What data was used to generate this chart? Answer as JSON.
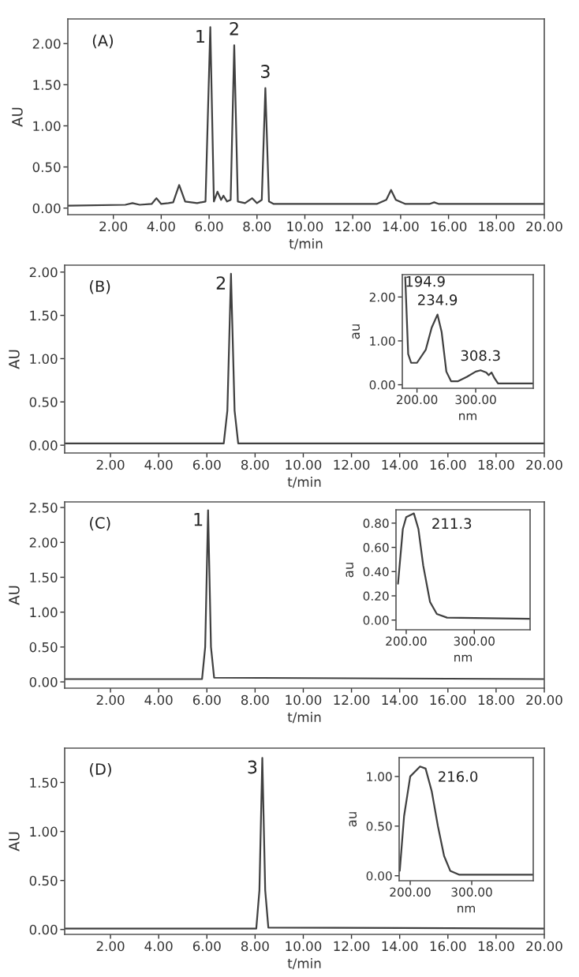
{
  "chart_data": [
    {
      "type": "line",
      "xlabel": "t/min",
      "ylabel": "AU",
      "annotations": [
        "(A)",
        {
          "text": "1",
          "x": 6.05,
          "y": 2.2
        },
        {
          "text": "2",
          "x": 7.05,
          "y": 1.98
        },
        {
          "text": "3",
          "x": 8.35,
          "y": 1.46
        }
      ],
      "x": [
        0.1,
        2.5,
        2.8,
        3.1,
        3.6,
        3.8,
        4.0,
        4.3,
        4.5,
        4.75,
        5.0,
        5.5,
        5.85,
        6.05,
        6.2,
        6.35,
        6.5,
        6.6,
        6.75,
        6.9,
        7.05,
        7.2,
        7.5,
        7.8,
        8.0,
        8.2,
        8.35,
        8.5,
        8.7,
        10.0,
        13.0,
        13.4,
        13.6,
        13.8,
        14.2,
        15.2,
        15.4,
        15.6,
        20.0
      ],
      "series": [
        {
          "color": "#404040",
          "values": [
            0.03,
            0.04,
            0.06,
            0.04,
            0.05,
            0.12,
            0.05,
            0.06,
            0.07,
            0.28,
            0.08,
            0.06,
            0.08,
            2.2,
            0.08,
            0.2,
            0.1,
            0.15,
            0.08,
            0.1,
            1.98,
            0.08,
            0.06,
            0.12,
            0.06,
            0.1,
            1.46,
            0.08,
            0.05,
            0.05,
            0.05,
            0.1,
            0.22,
            0.1,
            0.05,
            0.05,
            0.07,
            0.05,
            0.05
          ]
        }
      ],
      "xlim": [
        0.1,
        20
      ],
      "ylim": [
        -0.08,
        2.3
      ],
      "xticks": [
        {
          "value": 2,
          "label": "2.00"
        },
        {
          "value": 4,
          "label": "4.00"
        },
        {
          "value": 6,
          "label": "6.00"
        },
        {
          "value": 8,
          "label": "8.00"
        },
        {
          "value": 10,
          "label": "10.00"
        },
        {
          "value": 12,
          "label": "12.00"
        },
        {
          "value": 14,
          "label": "14.00"
        },
        {
          "value": 16,
          "label": "16.00"
        },
        {
          "value": 18,
          "label": "18.00"
        },
        {
          "value": 20,
          "label": "20.00"
        }
      ],
      "yticks": [
        {
          "value": 0,
          "label": "0.00"
        },
        {
          "value": 0.5,
          "label": "0.50"
        },
        {
          "value": 1,
          "label": "1.00"
        },
        {
          "value": 1.5,
          "label": "1.50"
        },
        {
          "value": 2,
          "label": "2.00"
        }
      ]
    },
    {
      "type": "line",
      "xlabel": "t/min",
      "ylabel": "AU",
      "annotations": [
        "(B)",
        {
          "text": "2",
          "x": 7.0,
          "y": 1.98
        }
      ],
      "x": [
        0.1,
        5.0,
        6.7,
        6.85,
        7.0,
        7.15,
        7.3,
        20.0
      ],
      "series": [
        {
          "color": "#404040",
          "values": [
            0.02,
            0.02,
            0.02,
            0.4,
            1.98,
            0.4,
            0.02,
            0.02
          ]
        }
      ],
      "xlim": [
        0.1,
        20
      ],
      "ylim": [
        -0.09,
        2.08
      ],
      "xticks": [
        {
          "value": 2,
          "label": "2.00"
        },
        {
          "value": 4,
          "label": "4.00"
        },
        {
          "value": 6,
          "label": "6.00"
        },
        {
          "value": 8,
          "label": "8.00"
        },
        {
          "value": 10,
          "label": "10.00"
        },
        {
          "value": 12,
          "label": "12.00"
        },
        {
          "value": 14,
          "label": "14.00"
        },
        {
          "value": 16,
          "label": "16.00"
        },
        {
          "value": 18,
          "label": "18.00"
        },
        {
          "value": 20,
          "label": "20.00"
        }
      ],
      "yticks": [
        {
          "value": 0,
          "label": "0.00"
        },
        {
          "value": 0.5,
          "label": "0.50"
        },
        {
          "value": 1,
          "label": "1.00"
        },
        {
          "value": 1.5,
          "label": "1.50"
        },
        {
          "value": 2,
          "label": "2.00"
        }
      ]
    },
    {
      "type": "line",
      "xlabel": "nm",
      "ylabel": "au",
      "annotations": [
        "194.9",
        {
          "text": "234.9",
          "x": 234.9,
          "y": 1.6
        },
        {
          "text": "308.3",
          "x": 308.3,
          "y": 0.33
        }
      ],
      "x": [
        180,
        185,
        190,
        200,
        215,
        225,
        234.9,
        242,
        250,
        258,
        270,
        285,
        300,
        308.3,
        318,
        322,
        327,
        332,
        338,
        398
      ],
      "series": [
        {
          "color": "#404040",
          "values": [
            2.45,
            0.7,
            0.5,
            0.5,
            0.8,
            1.3,
            1.6,
            1.2,
            0.3,
            0.08,
            0.08,
            0.18,
            0.3,
            0.33,
            0.28,
            0.22,
            0.28,
            0.15,
            0.03,
            0.03
          ]
        }
      ],
      "xlim": [
        175,
        398
      ],
      "ylim": [
        -0.08,
        2.51
      ],
      "xticks": [
        {
          "value": 200,
          "label": "200.00"
        },
        {
          "value": 300,
          "label": "300.00"
        }
      ],
      "yticks": [
        {
          "value": 0,
          "label": "0.00"
        },
        {
          "value": 1,
          "label": "1.00"
        },
        {
          "value": 2,
          "label": "2.00"
        }
      ]
    },
    {
      "type": "line",
      "xlabel": "t/min",
      "ylabel": "AU",
      "annotations": [
        "(C)",
        {
          "text": "1",
          "x": 6.05,
          "y": 2.46
        }
      ],
      "x": [
        0.1,
        5.0,
        5.8,
        5.93,
        6.05,
        6.17,
        6.3,
        20.0
      ],
      "series": [
        {
          "color": "#404040",
          "values": [
            0.04,
            0.04,
            0.04,
            0.5,
            2.46,
            0.5,
            0.06,
            0.04
          ]
        }
      ],
      "xlim": [
        0.1,
        20
      ],
      "ylim": [
        -0.09,
        2.58
      ],
      "xticks": [
        {
          "value": 2,
          "label": "2.00"
        },
        {
          "value": 4,
          "label": "4.00"
        },
        {
          "value": 6,
          "label": "6.00"
        },
        {
          "value": 8,
          "label": "8.00"
        },
        {
          "value": 10,
          "label": "10.00"
        },
        {
          "value": 12,
          "label": "12.00"
        },
        {
          "value": 14,
          "label": "14.00"
        },
        {
          "value": 16,
          "label": "16.00"
        },
        {
          "value": 18,
          "label": "18.00"
        },
        {
          "value": 20,
          "label": "20.00"
        }
      ],
      "yticks": [
        {
          "value": 0,
          "label": "0.00"
        },
        {
          "value": 0.5,
          "label": "0.50"
        },
        {
          "value": 1,
          "label": "1.00"
        },
        {
          "value": 1.5,
          "label": "1.50"
        },
        {
          "value": 2,
          "label": "2.00"
        },
        {
          "value": 2.5,
          "label": "2.50"
        }
      ]
    },
    {
      "type": "line",
      "xlabel": "nm",
      "ylabel": "au",
      "annotations": [
        {
          "text": "211.3",
          "x": 211.3,
          "y": 0.88
        }
      ],
      "x": [
        188,
        195,
        200,
        211.3,
        218,
        225,
        235,
        245,
        260,
        382
      ],
      "series": [
        {
          "color": "#404040",
          "values": [
            0.3,
            0.75,
            0.85,
            0.88,
            0.75,
            0.45,
            0.15,
            0.05,
            0.02,
            0.01
          ]
        }
      ],
      "xlim": [
        185,
        382
      ],
      "ylim": [
        -0.08,
        0.91
      ],
      "xticks": [
        {
          "value": 200,
          "label": "200.00"
        },
        {
          "value": 300,
          "label": "300.00"
        }
      ],
      "yticks": [
        {
          "value": 0,
          "label": "0.00"
        },
        {
          "value": 0.2,
          "label": "0.20"
        },
        {
          "value": 0.4,
          "label": "0.40"
        },
        {
          "value": 0.6,
          "label": "0.60"
        },
        {
          "value": 0.8,
          "label": "0.80"
        }
      ]
    },
    {
      "type": "line",
      "xlabel": "t/min",
      "ylabel": "AU",
      "annotations": [
        "(D)",
        {
          "text": "3",
          "x": 8.3,
          "y": 1.75
        }
      ],
      "x": [
        0.1,
        7.5,
        8.05,
        8.18,
        8.3,
        8.42,
        8.55,
        20.0
      ],
      "series": [
        {
          "color": "#404040",
          "values": [
            0.01,
            0.01,
            0.01,
            0.4,
            1.75,
            0.4,
            0.02,
            0.01
          ]
        }
      ],
      "xlim": [
        0.1,
        20
      ],
      "ylim": [
        -0.05,
        1.85
      ],
      "xticks": [
        {
          "value": 2,
          "label": "2.00"
        },
        {
          "value": 4,
          "label": "4.00"
        },
        {
          "value": 6,
          "label": "6.00"
        },
        {
          "value": 8,
          "label": "8.00"
        },
        {
          "value": 10,
          "label": "10.00"
        },
        {
          "value": 12,
          "label": "12.00"
        },
        {
          "value": 14,
          "label": "14.00"
        },
        {
          "value": 16,
          "label": "16.00"
        },
        {
          "value": 18,
          "label": "18.00"
        },
        {
          "value": 20,
          "label": "20.00"
        }
      ],
      "yticks": [
        {
          "value": 0,
          "label": "0.00"
        },
        {
          "value": 0.5,
          "label": "0.50"
        },
        {
          "value": 1,
          "label": "1.00"
        },
        {
          "value": 1.5,
          "label": "1.50"
        }
      ]
    },
    {
      "type": "line",
      "xlabel": "nm",
      "ylabel": "au",
      "annotations": [
        {
          "text": "216.0",
          "x": 216.0,
          "y": 1.1
        }
      ],
      "x": [
        183,
        190,
        200,
        216,
        225,
        235,
        245,
        255,
        265,
        280,
        400
      ],
      "series": [
        {
          "color": "#404040",
          "values": [
            0.05,
            0.6,
            1.0,
            1.1,
            1.08,
            0.85,
            0.5,
            0.2,
            0.05,
            0.01,
            0.01
          ]
        }
      ],
      "xlim": [
        182,
        400
      ],
      "ylim": [
        -0.05,
        1.19
      ],
      "xticks": [
        {
          "value": 200,
          "label": "200.00"
        },
        {
          "value": 300,
          "label": "300.00"
        }
      ],
      "yticks": [
        {
          "value": 0,
          "label": "0.00"
        },
        {
          "value": 0.5,
          "label": "0.50"
        },
        {
          "value": 1,
          "label": "1.00"
        }
      ]
    }
  ]
}
